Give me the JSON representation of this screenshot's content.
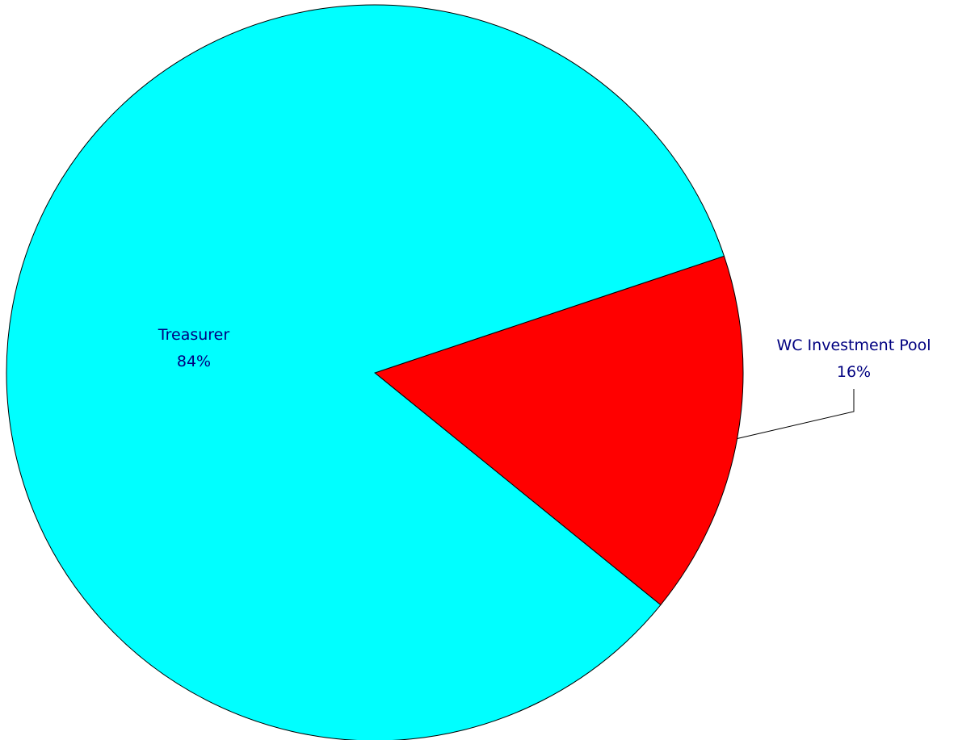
{
  "chart_data": {
    "type": "pie",
    "title": "",
    "slices": [
      {
        "label": "Treasurer",
        "value": 84,
        "display": "84%",
        "color": "#00FFFF"
      },
      {
        "label": "WC Investment Pool",
        "value": 16,
        "display": "16%",
        "color": "#FF0000"
      }
    ],
    "label_color": "#000080",
    "outline_color": "#000000",
    "legend": "none"
  }
}
